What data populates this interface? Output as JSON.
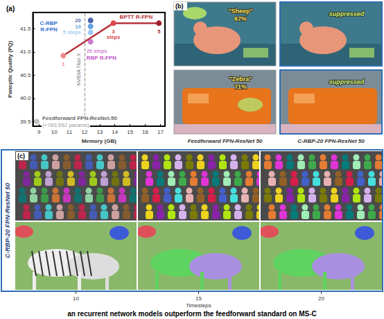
{
  "chart_data": {
    "type": "scatter",
    "title": "(a)",
    "x_label": "Memory (GB)",
    "y_label": "Panoptic Quality (PQ)",
    "xlim": [
      8.6,
      17.3
    ],
    "xticks": [
      9,
      10,
      11,
      12,
      13,
      14,
      15,
      16,
      17
    ],
    "ylim": [
      39.4,
      41.85
    ],
    "yticks": [
      39.5,
      {
        "value": 40,
        "label": "40.0"
      },
      40.5,
      {
        "value": 41,
        "label": "41.0"
      },
      41.5
    ],
    "grid": false,
    "reference_line": {
      "x": 12,
      "label": "NVIDIA Titan X"
    },
    "series": [
      {
        "name": "Feedforward FPN-ResNet-50",
        "note": "(+783,552 params)",
        "type": "scatter",
        "marker": "circle",
        "color": "#b3b3b3",
        "x": [
          8.85
        ],
        "values": [
          39.5
        ]
      },
      {
        "name": "BPTT R-FPN",
        "type": "line",
        "marker": "circle",
        "color": "#b8323a",
        "colors": [
          "#f08a8a",
          "#d9464c",
          "#a01f28"
        ],
        "x": [
          10.6,
          13.9,
          16.9
        ],
        "values": [
          40.92,
          41.62,
          41.62
        ],
        "labels": [
          "1",
          "3 steps",
          "5"
        ]
      },
      {
        "name": "C-RBP R-FPN",
        "type": "scatter",
        "marker": "circle",
        "color": "#2f6fd0",
        "colors": [
          "#86bdf0",
          "#3f88d8",
          "#1a3d8f"
        ],
        "x": [
          12.4,
          12.4,
          12.4
        ],
        "values": [
          41.42,
          41.55,
          41.68
        ],
        "labels": [
          "5 steps",
          "10",
          "20"
        ]
      },
      {
        "name": "RBP R-FPN",
        "type": "scatter",
        "marker": "circle",
        "color": "#c059c8",
        "x": [
          12.4
        ],
        "values": [
          41.22
        ],
        "labels": [
          "20 steps"
        ]
      }
    ]
  },
  "panel_b": {
    "label": "(b)",
    "columns": [
      "Feedforward FPN-ResNet 50",
      "C-RBP-20 FPN-ResNet 50"
    ],
    "rows": [
      {
        "feedforward": {
          "class": "\"Sheep\"",
          "score": "67%"
        },
        "c_rbp": "suppressed"
      },
      {
        "feedforward": {
          "class": "\"Zebra\"",
          "score": "71%"
        },
        "c_rbp": "suppressed"
      }
    ]
  },
  "panel_c": {
    "label": "(c)",
    "row_label": "C-RBP-20 FPN-ResNet 50",
    "x_label": "Timesteps",
    "x_ticks": [
      "10",
      "15",
      "20"
    ]
  },
  "caption": "an recurrent network models outperform the feedforward standard on MS-C"
}
